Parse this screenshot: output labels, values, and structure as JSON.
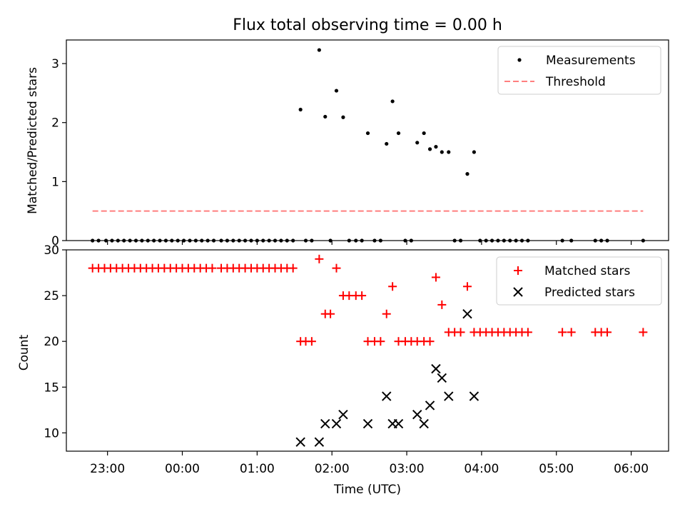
{
  "chart_data": {
    "title": "Flux total observing time = 0.00 h",
    "xlabel": "Time (UTC)",
    "x_unit": "hours after 00:00 UTC",
    "xlim": [
      -1.55,
      6.5
    ],
    "x_ticks": [
      {
        "value": -1,
        "label": "23:00"
      },
      {
        "value": 0,
        "label": "00:00"
      },
      {
        "value": 1,
        "label": "01:00"
      },
      {
        "value": 2,
        "label": "02:00"
      },
      {
        "value": 3,
        "label": "03:00"
      },
      {
        "value": 4,
        "label": "04:00"
      },
      {
        "value": 5,
        "label": "05:00"
      },
      {
        "value": 6,
        "label": "06:00"
      }
    ],
    "colors": {
      "matched": "#ff0000",
      "predicted": "#000000",
      "threshold": "#ff7f7f",
      "measurement": "#000000"
    },
    "panels": [
      {
        "type": "scatter",
        "ylabel": "Matched/Predicted stars",
        "ylim": [
          0,
          3.4
        ],
        "y_ticks": [
          0,
          1,
          2,
          3
        ],
        "legend": {
          "position": "top-right",
          "entries": [
            "Measurements",
            "Threshold"
          ]
        },
        "series": [
          {
            "name": "Measurements",
            "marker": "dot",
            "points": [
              [
                -1.2,
                0
              ],
              [
                -1.12,
                0
              ],
              [
                -1.02,
                0
              ],
              [
                -0.94,
                0
              ],
              [
                -0.86,
                0
              ],
              [
                -0.78,
                0
              ],
              [
                -0.7,
                0
              ],
              [
                -0.62,
                0
              ],
              [
                -0.54,
                0
              ],
              [
                -0.46,
                0
              ],
              [
                -0.38,
                0
              ],
              [
                -0.3,
                0
              ],
              [
                -0.22,
                0
              ],
              [
                -0.14,
                0
              ],
              [
                -0.06,
                0
              ],
              [
                0.02,
                0
              ],
              [
                0.1,
                0
              ],
              [
                0.18,
                0
              ],
              [
                0.26,
                0
              ],
              [
                0.34,
                0
              ],
              [
                0.42,
                0
              ],
              [
                0.52,
                0
              ],
              [
                0.6,
                0
              ],
              [
                0.68,
                0
              ],
              [
                0.76,
                0
              ],
              [
                0.84,
                0
              ],
              [
                0.92,
                0
              ],
              [
                1.0,
                0
              ],
              [
                1.08,
                0
              ],
              [
                1.16,
                0
              ],
              [
                1.24,
                0
              ],
              [
                1.32,
                0
              ],
              [
                1.4,
                0
              ],
              [
                1.48,
                0
              ],
              [
                1.58,
                2.22
              ],
              [
                1.65,
                0
              ],
              [
                1.73,
                0
              ],
              [
                1.83,
                3.23
              ],
              [
                1.91,
                2.1
              ],
              [
                1.98,
                0
              ],
              [
                2.06,
                2.54
              ],
              [
                2.15,
                2.09
              ],
              [
                2.23,
                0
              ],
              [
                2.32,
                0
              ],
              [
                2.4,
                0
              ],
              [
                2.48,
                1.82
              ],
              [
                2.57,
                0
              ],
              [
                2.65,
                0
              ],
              [
                2.73,
                1.64
              ],
              [
                2.81,
                2.36
              ],
              [
                2.89,
                1.82
              ],
              [
                2.98,
                0
              ],
              [
                3.06,
                0
              ],
              [
                3.14,
                1.66
              ],
              [
                3.23,
                1.82
              ],
              [
                3.31,
                1.55
              ],
              [
                3.39,
                1.59
              ],
              [
                3.47,
                1.5
              ],
              [
                3.56,
                1.5
              ],
              [
                3.64,
                0
              ],
              [
                3.72,
                0
              ],
              [
                3.81,
                1.13
              ],
              [
                3.9,
                1.5
              ],
              [
                3.98,
                0
              ],
              [
                4.06,
                0
              ],
              [
                4.14,
                0
              ],
              [
                4.22,
                0
              ],
              [
                4.3,
                0
              ],
              [
                4.38,
                0
              ],
              [
                4.46,
                0
              ],
              [
                4.54,
                0
              ],
              [
                4.62,
                0
              ],
              [
                5.08,
                0
              ],
              [
                5.2,
                0
              ],
              [
                5.52,
                0
              ],
              [
                5.6,
                0
              ],
              [
                5.68,
                0
              ],
              [
                6.16,
                0
              ]
            ]
          },
          {
            "name": "Threshold",
            "marker": "dashed-line",
            "points": [
              [
                -1.2,
                0.5
              ],
              [
                6.16,
                0.5
              ]
            ]
          }
        ]
      },
      {
        "type": "scatter",
        "ylabel": "Count",
        "ylim": [
          8,
          30
        ],
        "y_ticks": [
          10,
          15,
          20,
          25,
          30
        ],
        "legend": {
          "position": "top-right",
          "entries": [
            "Matched stars",
            "Predicted stars"
          ]
        },
        "series": [
          {
            "name": "Matched stars",
            "marker": "plus",
            "points": [
              [
                -1.2,
                28
              ],
              [
                -1.12,
                28
              ],
              [
                -1.04,
                28
              ],
              [
                -0.96,
                28
              ],
              [
                -0.88,
                28
              ],
              [
                -0.8,
                28
              ],
              [
                -0.72,
                28
              ],
              [
                -0.64,
                28
              ],
              [
                -0.56,
                28
              ],
              [
                -0.48,
                28
              ],
              [
                -0.4,
                28
              ],
              [
                -0.32,
                28
              ],
              [
                -0.24,
                28
              ],
              [
                -0.16,
                28
              ],
              [
                -0.08,
                28
              ],
              [
                0.0,
                28
              ],
              [
                0.08,
                28
              ],
              [
                0.16,
                28
              ],
              [
                0.24,
                28
              ],
              [
                0.32,
                28
              ],
              [
                0.4,
                28
              ],
              [
                0.52,
                28
              ],
              [
                0.6,
                28
              ],
              [
                0.68,
                28
              ],
              [
                0.76,
                28
              ],
              [
                0.84,
                28
              ],
              [
                0.92,
                28
              ],
              [
                1.0,
                28
              ],
              [
                1.08,
                28
              ],
              [
                1.16,
                28
              ],
              [
                1.24,
                28
              ],
              [
                1.32,
                28
              ],
              [
                1.4,
                28
              ],
              [
                1.48,
                28
              ],
              [
                1.58,
                20
              ],
              [
                1.65,
                20
              ],
              [
                1.73,
                20
              ],
              [
                1.83,
                29
              ],
              [
                1.91,
                23
              ],
              [
                1.98,
                23
              ],
              [
                2.06,
                28
              ],
              [
                2.15,
                25
              ],
              [
                2.23,
                25
              ],
              [
                2.32,
                25
              ],
              [
                2.4,
                25
              ],
              [
                2.48,
                20
              ],
              [
                2.57,
                20
              ],
              [
                2.65,
                20
              ],
              [
                2.73,
                23
              ],
              [
                2.81,
                26
              ],
              [
                2.89,
                20
              ],
              [
                2.98,
                20
              ],
              [
                3.06,
                20
              ],
              [
                3.14,
                20
              ],
              [
                3.23,
                20
              ],
              [
                3.31,
                20
              ],
              [
                3.39,
                27
              ],
              [
                3.47,
                24
              ],
              [
                3.56,
                21
              ],
              [
                3.64,
                21
              ],
              [
                3.72,
                21
              ],
              [
                3.81,
                26
              ],
              [
                3.9,
                21
              ],
              [
                3.98,
                21
              ],
              [
                4.06,
                21
              ],
              [
                4.14,
                21
              ],
              [
                4.22,
                21
              ],
              [
                4.3,
                21
              ],
              [
                4.38,
                21
              ],
              [
                4.46,
                21
              ],
              [
                4.54,
                21
              ],
              [
                4.62,
                21
              ],
              [
                5.08,
                21
              ],
              [
                5.2,
                21
              ],
              [
                5.52,
                21
              ],
              [
                5.6,
                21
              ],
              [
                5.68,
                21
              ],
              [
                6.16,
                21
              ]
            ]
          },
          {
            "name": "Predicted stars",
            "marker": "x",
            "points": [
              [
                1.58,
                9
              ],
              [
                1.83,
                9
              ],
              [
                1.91,
                11
              ],
              [
                2.06,
                11
              ],
              [
                2.15,
                12
              ],
              [
                2.48,
                11
              ],
              [
                2.73,
                14
              ],
              [
                2.81,
                11
              ],
              [
                2.89,
                11
              ],
              [
                3.14,
                12
              ],
              [
                3.23,
                11
              ],
              [
                3.31,
                13
              ],
              [
                3.39,
                17
              ],
              [
                3.47,
                16
              ],
              [
                3.56,
                14
              ],
              [
                3.81,
                23
              ],
              [
                3.9,
                14
              ]
            ]
          }
        ]
      }
    ]
  }
}
